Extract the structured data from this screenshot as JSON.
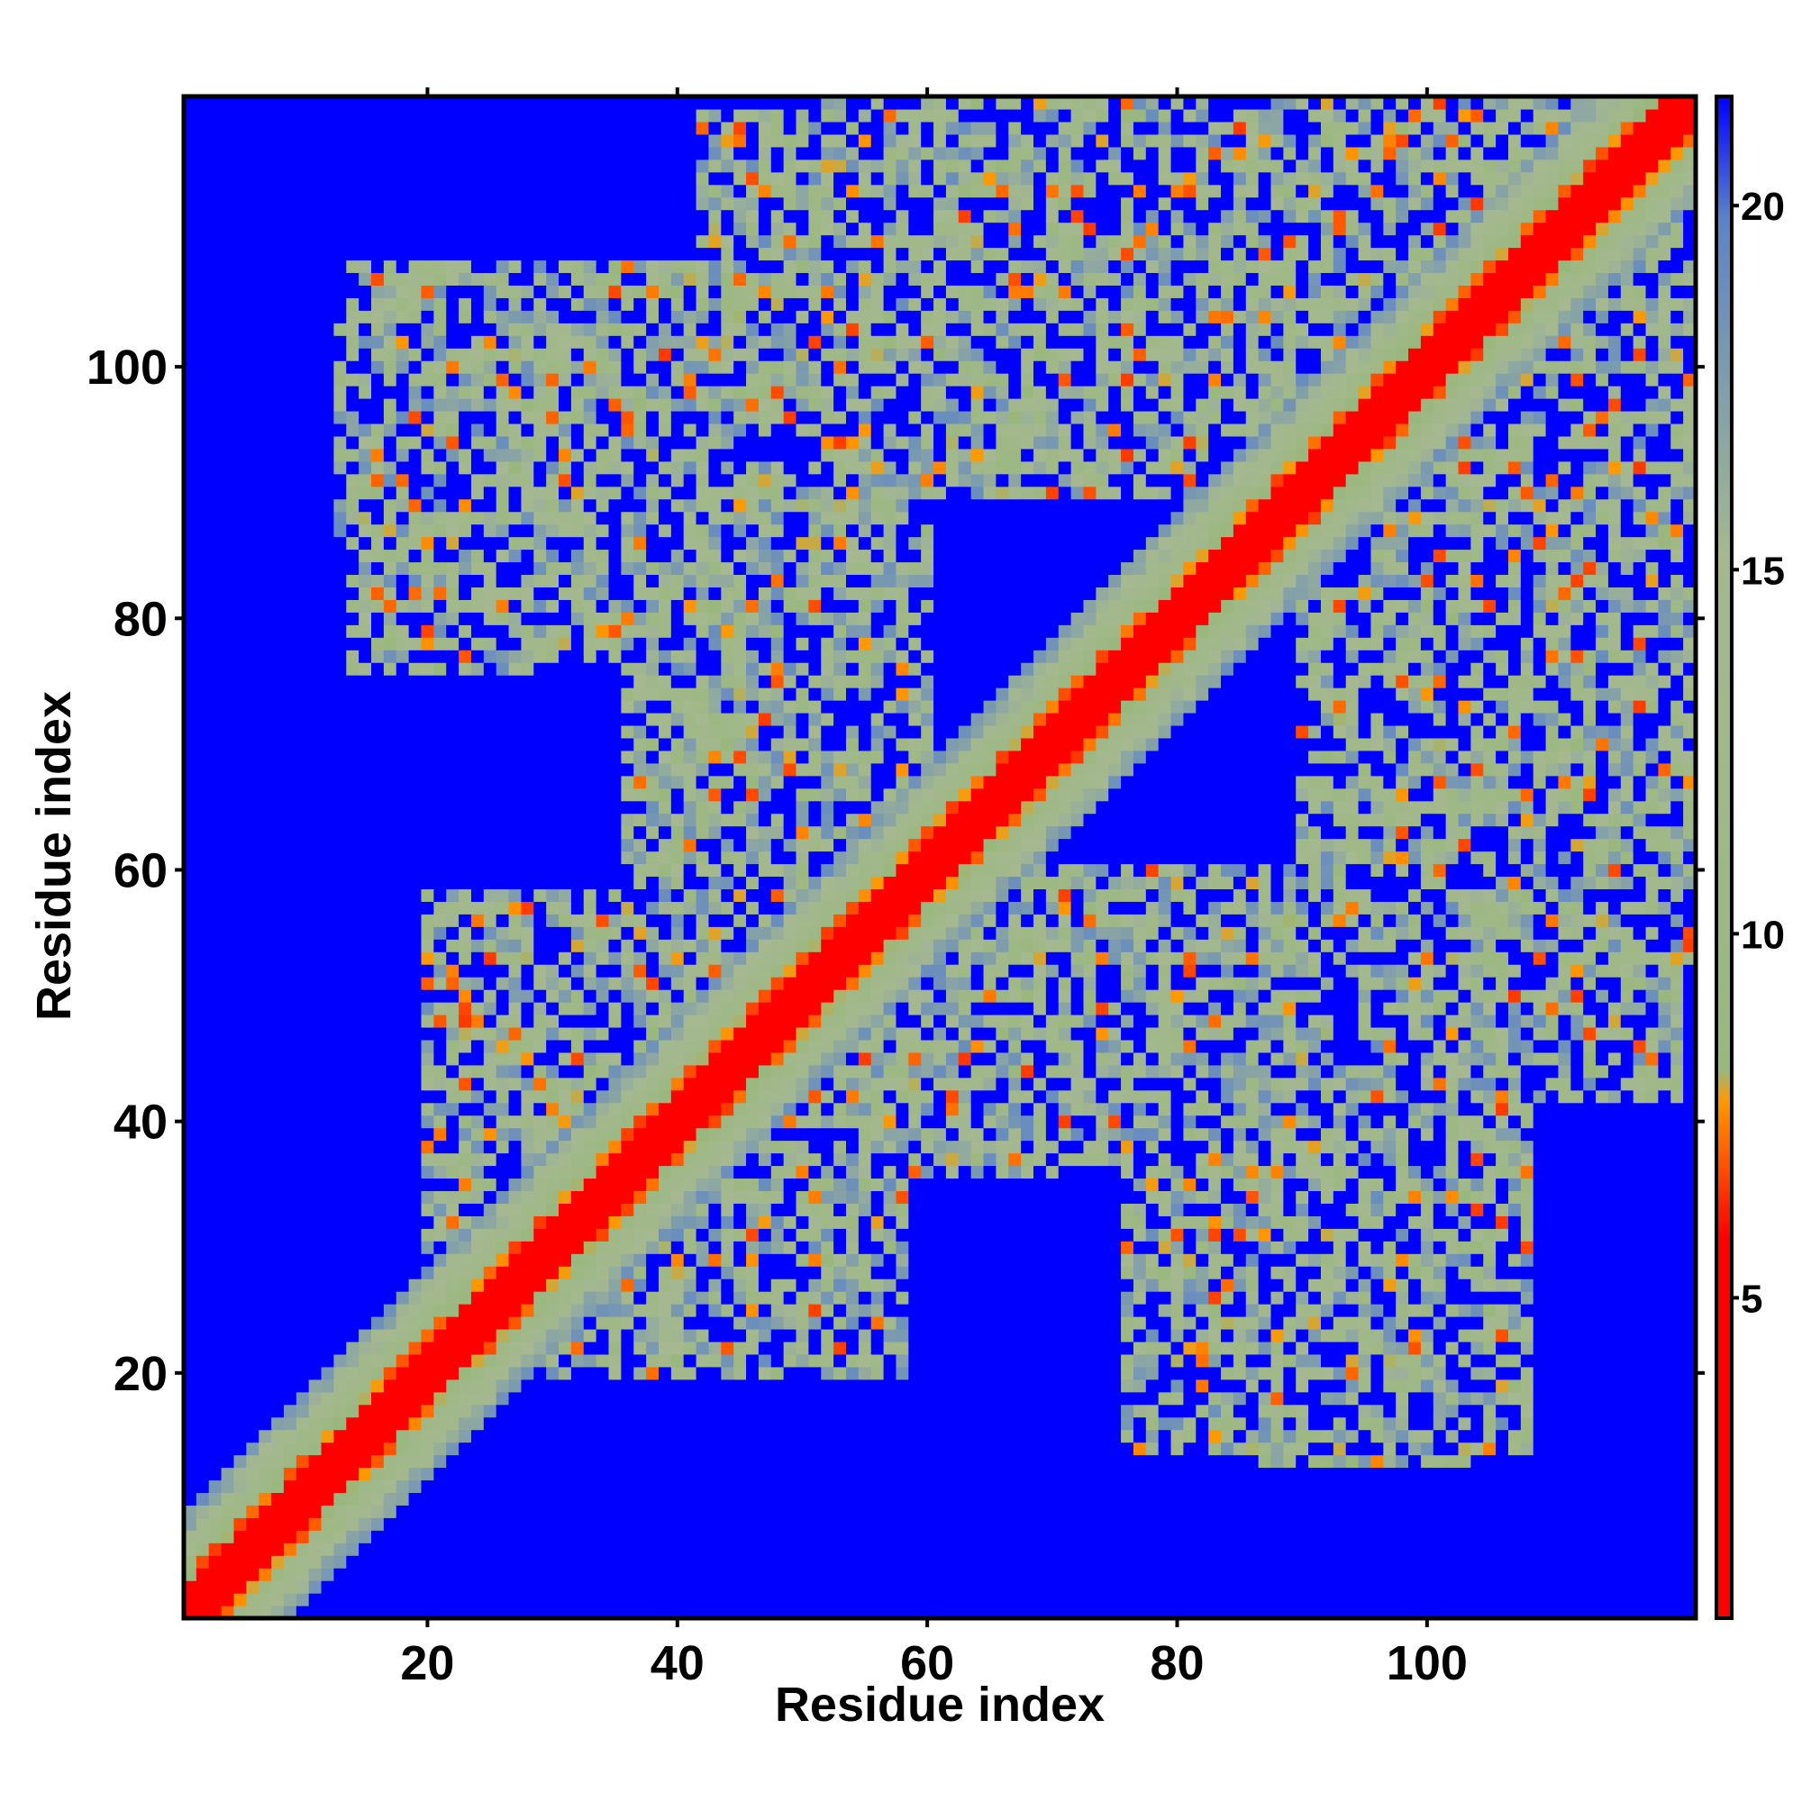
{
  "chart_data": {
    "type": "heatmap",
    "title": "",
    "xlabel": "Residue index",
    "ylabel": "Residue index",
    "xlim": [
      0.5,
      121.5
    ],
    "ylim": [
      0.5,
      121.5
    ],
    "x_ticks": [
      20,
      40,
      60,
      80,
      100
    ],
    "y_ticks": [
      20,
      40,
      60,
      80,
      100
    ],
    "n_residues": 121,
    "colorbar": {
      "range": [
        0.6,
        21.5
      ],
      "ticks": [
        5,
        10,
        15,
        20
      ],
      "colors": [
        {
          "stop": 0.0,
          "color": "#ff0000"
        },
        {
          "stop": 0.25,
          "color": "#ff0000"
        },
        {
          "stop": 0.34,
          "color": "#ff9900"
        },
        {
          "stop": 0.36,
          "color": "#9ab87e"
        },
        {
          "stop": 0.7,
          "color": "#a5b890"
        },
        {
          "stop": 0.92,
          "color": "#5b83c8"
        },
        {
          "stop": 1.0,
          "color": "#0000ff"
        }
      ]
    },
    "grid": false,
    "description_values": {
      "diagonal": "red (near 0)",
      "background": "blue (~21.5)"
    },
    "contact_clusters": [
      {
        "x_range": [
          13,
          36
        ],
        "y_range": [
          87,
          103
        ]
      },
      {
        "x_range": [
          36,
          58
        ],
        "y_range": [
          62,
          92
        ]
      },
      {
        "x_range": [
          42,
          100
        ],
        "y_range": [
          95,
          120
        ]
      },
      {
        "x_range": [
          20,
          50
        ],
        "y_range": [
          30,
          58
        ]
      },
      {
        "x_range": [
          56,
          90
        ],
        "y_range": [
          36,
          60
        ]
      },
      {
        "x_range": [
          76,
          108
        ],
        "y_range": [
          14,
          44
        ]
      },
      {
        "x_range": [
          90,
          121
        ],
        "y_range": [
          52,
          82
        ]
      },
      {
        "x_range": [
          90,
          121
        ],
        "y_range": [
          88,
          121
        ]
      }
    ]
  }
}
